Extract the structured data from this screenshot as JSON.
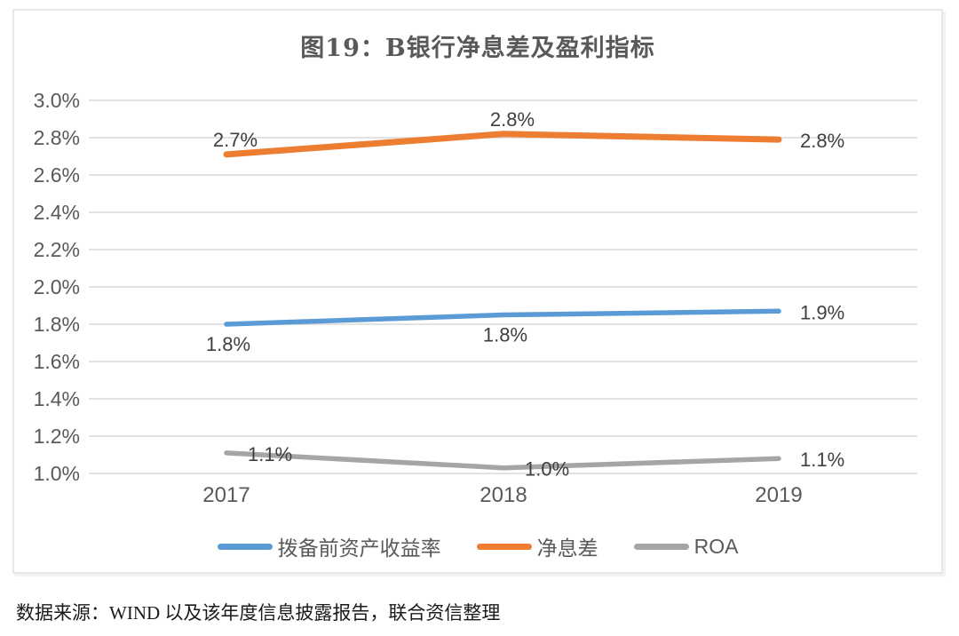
{
  "figure": {
    "title": "图19：B银行净息差及盈利指标",
    "source_note": "数据来源：WIND 以及该年度信息披露报告，联合资信整理"
  },
  "colors": {
    "blue": "#5B9BD5",
    "orange": "#ED7D31",
    "gray": "#A5A5A5",
    "gridline": "#D9D9D9",
    "axis_text": "#595959",
    "label_text": "#3F3F3F",
    "panel_border": "#E7E7E7"
  },
  "chart_data": {
    "type": "line",
    "title": "图19：B银行净息差及盈利指标",
    "categories": [
      "2017",
      "2018",
      "2019"
    ],
    "series": [
      {
        "name": "拨备前资产收益率",
        "color_key": "blue",
        "values": [
          1.8,
          1.8,
          1.9
        ],
        "labels": [
          "1.8%",
          "1.8%",
          "1.9%"
        ],
        "plot_values": [
          1.8,
          1.85,
          1.87
        ],
        "label_placements": [
          "below",
          "below",
          "right"
        ],
        "stroke_width": 5.5
      },
      {
        "name": "净息差",
        "color_key": "orange",
        "values": [
          2.7,
          2.8,
          2.8
        ],
        "labels": [
          "2.7%",
          "2.8%",
          "2.8%"
        ],
        "plot_values": [
          2.71,
          2.82,
          2.79
        ],
        "label_placements": [
          "above",
          "above",
          "right"
        ],
        "stroke_width": 7
      },
      {
        "name": "ROA",
        "color_key": "gray",
        "values": [
          1.1,
          1.0,
          1.1
        ],
        "labels": [
          "1.1%",
          "1.0%",
          "1.1%"
        ],
        "plot_values": [
          1.11,
          1.03,
          1.08
        ],
        "label_placements": [
          "right",
          "right",
          "right"
        ],
        "stroke_width": 5.5
      }
    ],
    "y_axis": {
      "min": 1.0,
      "max": 3.0,
      "step": 0.2,
      "unit": "%",
      "tick_labels": [
        "1.0%",
        "1.2%",
        "1.4%",
        "1.6%",
        "1.8%",
        "2.0%",
        "2.2%",
        "2.4%",
        "2.6%",
        "2.8%",
        "3.0%"
      ]
    },
    "grid": true,
    "legend_position": "bottom"
  }
}
